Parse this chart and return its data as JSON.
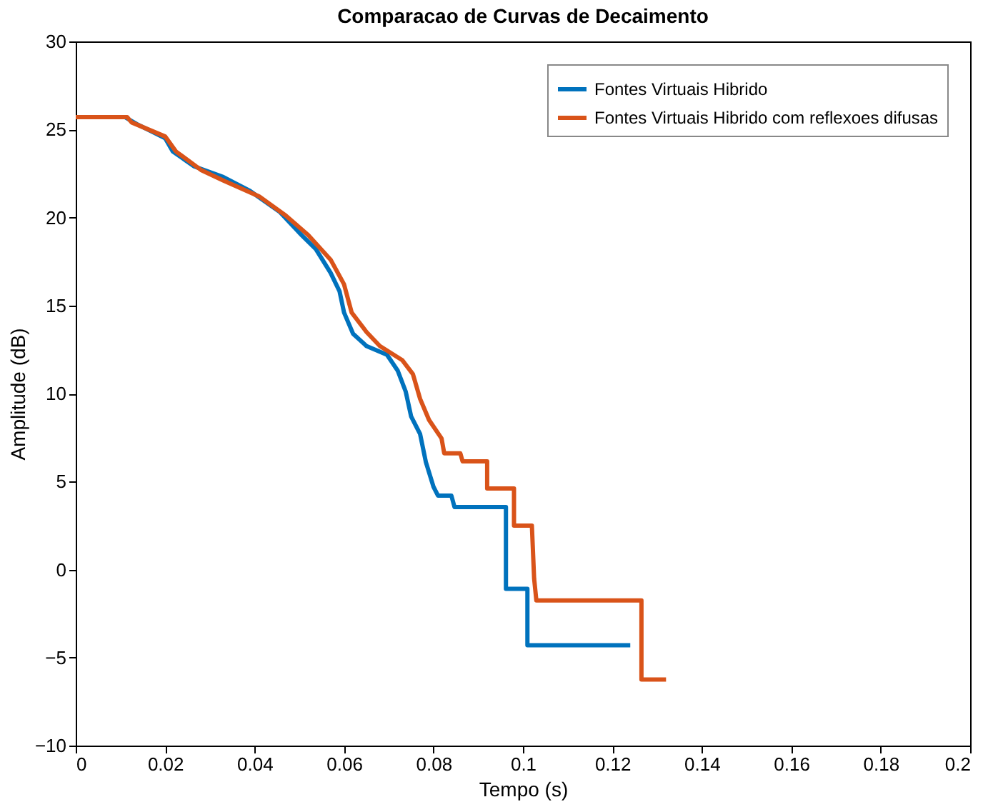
{
  "chart_data": {
    "type": "line",
    "title": "Comparacao de Curvas de Decaimento",
    "xlabel": "Tempo (s)",
    "ylabel": "Amplitude (dB)",
    "xlim": [
      0,
      0.2
    ],
    "xticks": [
      0,
      0.02,
      0.04,
      0.06,
      0.08,
      0.1,
      0.12,
      0.14,
      0.16,
      0.18,
      0.2
    ],
    "ylim": [
      -10,
      30
    ],
    "yticks": [
      -10,
      -5,
      0,
      5,
      10,
      15,
      20,
      25,
      30
    ],
    "grid": false,
    "legend": "top right",
    "line_style": "solid",
    "series": [
      {
        "name": "Fontes Virtuais Hibrido",
        "color": "#0072bd",
        "x": [
          0,
          0.011,
          0.0137,
          0.02,
          0.0217,
          0.0265,
          0.033,
          0.039,
          0.0457,
          0.0505,
          0.0537,
          0.057,
          0.059,
          0.06,
          0.062,
          0.065,
          0.0696,
          0.072,
          0.0738,
          0.075,
          0.077,
          0.0783,
          0.08,
          0.081,
          0.084,
          0.0847,
          0.0962,
          0.0962,
          0.101,
          0.101,
          0.124
        ],
        "values": [
          25.7,
          25.7,
          25.3,
          24.5,
          23.75,
          22.9,
          22.3,
          21.5,
          20.3,
          19.0,
          18.2,
          16.85,
          15.8,
          14.6,
          13.4,
          12.7,
          12.2,
          11.3,
          10.1,
          8.7,
          7.7,
          6.1,
          4.7,
          4.2,
          4.2,
          3.55,
          3.55,
          -1.1,
          -1.1,
          -4.3,
          -4.3
        ]
      },
      {
        "name": "Fontes Virtuais Hibrido com reflexoes difusas",
        "color": "#d95319",
        "x": [
          0,
          0.0115,
          0.0125,
          0.02,
          0.0224,
          0.028,
          0.033,
          0.041,
          0.047,
          0.052,
          0.057,
          0.06,
          0.0617,
          0.065,
          0.068,
          0.073,
          0.0754,
          0.077,
          0.079,
          0.0818,
          0.0824,
          0.086,
          0.0865,
          0.092,
          0.092,
          0.098,
          0.098,
          0.102,
          0.1025,
          0.103,
          0.1265,
          0.1265,
          0.132
        ],
        "values": [
          25.7,
          25.7,
          25.4,
          24.6,
          23.75,
          22.7,
          22.1,
          21.2,
          20.1,
          19.0,
          17.6,
          16.2,
          14.6,
          13.5,
          12.7,
          11.9,
          11.1,
          9.7,
          8.5,
          7.45,
          6.6,
          6.6,
          6.15,
          6.15,
          4.6,
          4.6,
          2.5,
          2.5,
          -0.5,
          -1.75,
          -1.75,
          -6.25,
          -6.25
        ]
      }
    ]
  }
}
